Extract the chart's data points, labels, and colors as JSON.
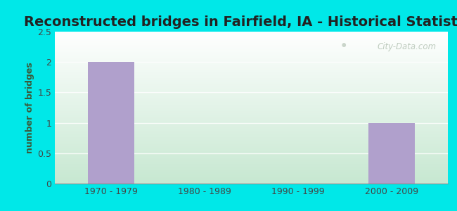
{
  "title": "Reconstructed bridges in Fairfield, IA - Historical Statistics",
  "categories": [
    "1970 - 1979",
    "1980 - 1989",
    "1990 - 1999",
    "2000 - 2009"
  ],
  "values": [
    2,
    0,
    0,
    1
  ],
  "bar_color": "#b0a0cc",
  "ylabel": "number of bridges",
  "ylim": [
    0,
    2.5
  ],
  "yticks": [
    0,
    0.5,
    1,
    1.5,
    2,
    2.5
  ],
  "title_fontsize": 14,
  "axis_label_fontsize": 9,
  "tick_fontsize": 9,
  "background_outer": "#00e8e8",
  "watermark": "City-Data.com",
  "bar_width": 0.5,
  "ylabel_color": "#3a5a3a",
  "title_color": "#222222",
  "tick_color": "#444444",
  "grid_color": "#ccddcc",
  "bg_top_left": "#ddeedd",
  "bg_top_right": "#f5fbf5",
  "bg_bottom_left": "#cce8dd",
  "bg_bottom_right": "#eef8f5"
}
